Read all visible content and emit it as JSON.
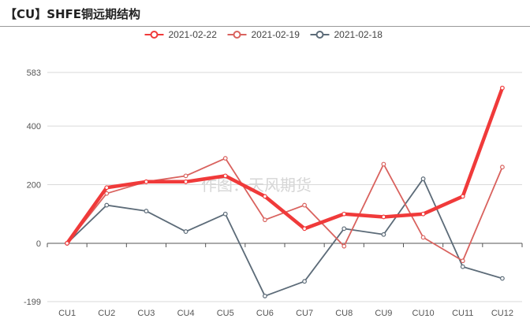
{
  "header": {
    "title": "【CU】SHFE铜远期结构"
  },
  "watermark": "作图：天风期货",
  "chart_data": {
    "type": "line",
    "title": "【CU】SHFE铜远期结构",
    "categories": [
      "CU1",
      "CU2",
      "CU3",
      "CU4",
      "CU5",
      "CU6",
      "CU7",
      "CU8",
      "CU9",
      "CU10",
      "CU11",
      "CU12"
    ],
    "ylim": [
      -199,
      583
    ],
    "yticks": [
      583,
      400,
      200,
      0,
      -199
    ],
    "grid": true,
    "legend_position": "top",
    "series": [
      {
        "name": "2021-02-22",
        "color": "#f03a3a",
        "width": 4.5,
        "values": [
          0,
          190,
          210,
          210,
          230,
          160,
          50,
          100,
          90,
          100,
          160,
          530
        ]
      },
      {
        "name": "2021-02-19",
        "color": "#d9625e",
        "width": 1.8,
        "values": [
          0,
          170,
          210,
          230,
          290,
          80,
          130,
          -10,
          270,
          20,
          -60,
          260
        ]
      },
      {
        "name": "2021-02-18",
        "color": "#5c6b78",
        "width": 1.8,
        "values": [
          0,
          130,
          110,
          40,
          100,
          -180,
          -130,
          50,
          30,
          220,
          -80,
          -120
        ]
      }
    ]
  }
}
